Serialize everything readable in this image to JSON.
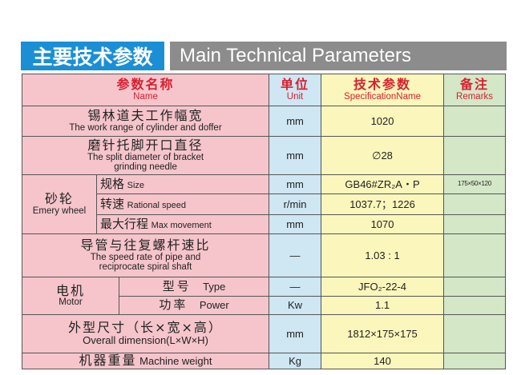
{
  "title": {
    "cn": "主要技术参数",
    "en": "Main Technical Parameters"
  },
  "header": {
    "name_cn": "参数名称",
    "name_en": "Name",
    "unit_cn": "单位",
    "unit_en": "Unit",
    "spec_cn": "技术参数",
    "spec_en": "SpecificationName",
    "rem_cn": "备注",
    "rem_en": "Remarks"
  },
  "rows": {
    "r1": {
      "cn": "锡林道夫工作幅宽",
      "en": "The work range of cylinder and doffer",
      "unit": "mm",
      "spec": "1020"
    },
    "r2": {
      "cn": "磨针托脚开口直径",
      "en": "The split diameter of bracket grinding needle",
      "unit": "mm",
      "spec": "∅28"
    },
    "emery": {
      "cn": "砂轮",
      "en": "Emery wheel",
      "size": {
        "cn": "规格",
        "en": "Size",
        "unit": "mm",
        "spec": "GB46#ZR₂A・P",
        "remark": "175×50×120"
      },
      "speed": {
        "cn": "转速",
        "en": "Rational speed",
        "unit": "r/min",
        "spec": "1037.7；1226"
      },
      "move": {
        "cn": "最大行程",
        "en": "Max movement",
        "unit": "mm",
        "spec": "1070"
      }
    },
    "r3": {
      "cn": "导管与往复螺杆速比",
      "en": "The speed rate of pipe and reciprocate spiral shaft",
      "unit": "—",
      "spec": "1.03 : 1"
    },
    "motor": {
      "cn": "电机",
      "en": "Motor",
      "type": {
        "cn": "型号",
        "en": "Type",
        "unit": "—",
        "spec": "JFO₂-22-4"
      },
      "power": {
        "cn": "功率",
        "en": "Power",
        "unit": "Kw",
        "spec": "1.1"
      }
    },
    "r4": {
      "cn": "外型尺寸（长×宽×高）",
      "en": "Overall dimension(L×W×H)",
      "unit": "mm",
      "spec": "1812×175×175"
    },
    "r5": {
      "cn": "机器重量",
      "en": "Machine weight",
      "unit": "Kg",
      "spec": "140"
    }
  }
}
